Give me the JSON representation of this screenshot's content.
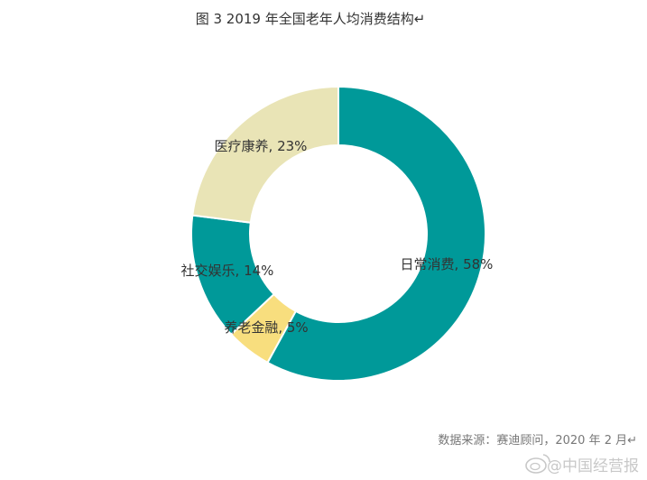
{
  "chart_data": {
    "type": "pie",
    "donut": true,
    "title": "图 3 2019 年全国老年人均消费结构↵",
    "categories": [
      "日常消费",
      "养老金融",
      "社交娱乐",
      "医疗康养"
    ],
    "values": [
      58,
      5,
      14,
      23
    ],
    "data_labels": [
      "日常消费, 58%",
      "养老金融, 5%",
      "社交娱乐, 14%",
      "医疗康养, 23%"
    ],
    "colors": [
      "#009999",
      "#f8de7e",
      "#009999",
      "#e9e4b6"
    ],
    "legend": "none"
  },
  "source": "数据来源：赛迪顾问，2020 年 2 月↵",
  "watermark": {
    "text": "@中国经营报",
    "icon": "weibo-logo-icon"
  }
}
